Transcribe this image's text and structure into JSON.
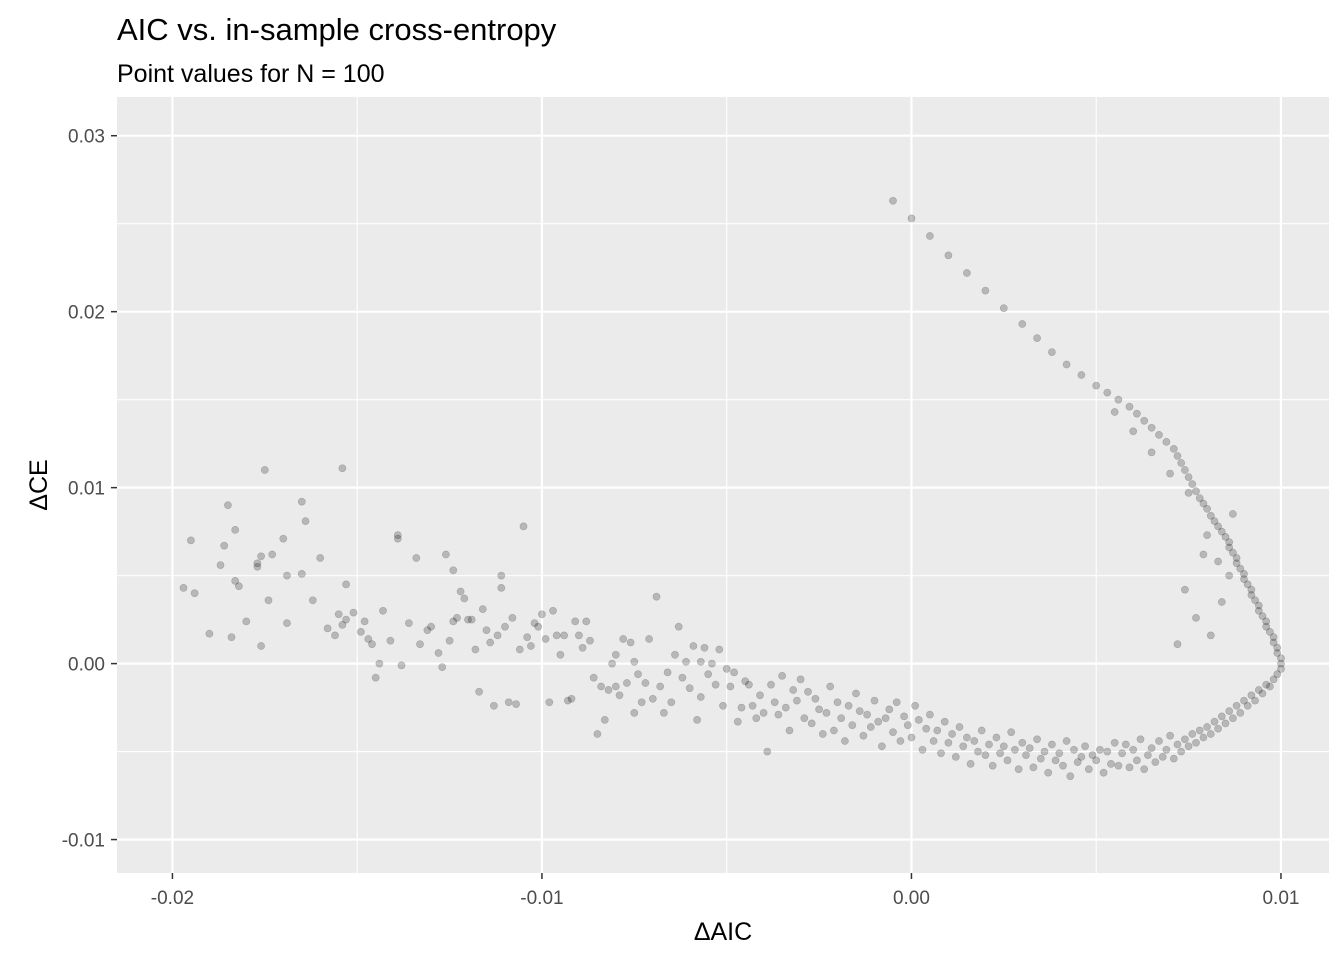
{
  "chart_data": {
    "type": "scatter",
    "title": "AIC vs. in-sample cross-entropy",
    "subtitle": "Point values for N = 100",
    "xlabel": "ΔAIC",
    "ylabel": "ΔCE",
    "xlim": [
      -0.0215,
      0.0113
    ],
    "ylim": [
      -0.0119,
      0.0322
    ],
    "xticks": [
      -0.02,
      -0.01,
      0.0,
      0.01
    ],
    "xtick_labels": [
      "-0.02",
      "-0.01",
      "0.00",
      "0.01"
    ],
    "yticks": [
      -0.01,
      0.0,
      0.01,
      0.02,
      0.03
    ],
    "ytick_labels": [
      "-0.01",
      "0.00",
      "0.01",
      "0.02",
      "0.03"
    ],
    "grid": true,
    "point_color": "#000000",
    "point_alpha": 0.22,
    "panel_background": "#ebebeb",
    "points": [
      [
        -0.0197,
        0.0043
      ],
      [
        -0.0195,
        0.007
      ],
      [
        -0.0194,
        0.004
      ],
      [
        -0.019,
        0.0017
      ],
      [
        -0.0187,
        0.0056
      ],
      [
        -0.0186,
        0.0067
      ],
      [
        -0.0185,
        0.009
      ],
      [
        -0.0184,
        0.0015
      ],
      [
        -0.0183,
        0.0076
      ],
      [
        -0.0183,
        0.0047
      ],
      [
        -0.0182,
        0.0044
      ],
      [
        -0.018,
        0.0024
      ],
      [
        -0.0177,
        0.0055
      ],
      [
        -0.0177,
        0.0057
      ],
      [
        -0.0176,
        0.001
      ],
      [
        -0.0176,
        0.0061
      ],
      [
        -0.0175,
        0.011
      ],
      [
        -0.0174,
        0.0036
      ],
      [
        -0.0173,
        0.0062
      ],
      [
        -0.017,
        0.0071
      ],
      [
        -0.0169,
        0.005
      ],
      [
        -0.0169,
        0.0023
      ],
      [
        -0.0165,
        0.0051
      ],
      [
        -0.0165,
        0.0092
      ],
      [
        -0.0164,
        0.0081
      ],
      [
        -0.0162,
        0.0036
      ],
      [
        -0.016,
        0.006
      ],
      [
        -0.0158,
        0.002
      ],
      [
        -0.0156,
        0.0016
      ],
      [
        -0.0155,
        0.0028
      ],
      [
        -0.0154,
        0.0111
      ],
      [
        -0.0154,
        0.0022
      ],
      [
        -0.0153,
        0.0045
      ],
      [
        -0.0153,
        0.0025
      ],
      [
        -0.0151,
        0.0029
      ],
      [
        -0.0149,
        0.0018
      ],
      [
        -0.0148,
        0.0024
      ],
      [
        -0.0147,
        0.0014
      ],
      [
        -0.0146,
        0.0011
      ],
      [
        -0.0145,
        -0.0008
      ],
      [
        -0.0144,
        0.0
      ],
      [
        -0.0143,
        0.003
      ],
      [
        -0.0141,
        0.0013
      ],
      [
        -0.0139,
        0.0071
      ],
      [
        -0.0139,
        0.0073
      ],
      [
        -0.0138,
        -0.0001
      ],
      [
        -0.0136,
        0.0023
      ],
      [
        -0.0134,
        0.006
      ],
      [
        -0.0133,
        0.0011
      ],
      [
        -0.0131,
        0.0019
      ],
      [
        -0.013,
        0.0021
      ],
      [
        -0.0128,
        0.0006
      ],
      [
        -0.0127,
        -0.0002
      ],
      [
        -0.0126,
        0.0062
      ],
      [
        -0.0125,
        0.0013
      ],
      [
        -0.0124,
        0.0024
      ],
      [
        -0.0124,
        0.0053
      ],
      [
        -0.0123,
        0.0026
      ],
      [
        -0.0122,
        0.0041
      ],
      [
        -0.0121,
        0.0037
      ],
      [
        -0.012,
        0.0025
      ],
      [
        -0.0119,
        0.0025
      ],
      [
        -0.0118,
        0.0008
      ],
      [
        -0.0117,
        -0.0016
      ],
      [
        -0.0116,
        0.0031
      ],
      [
        -0.0115,
        0.0019
      ],
      [
        -0.0114,
        0.0012
      ],
      [
        -0.0113,
        -0.0024
      ],
      [
        -0.0112,
        0.0016
      ],
      [
        -0.0111,
        0.005
      ],
      [
        -0.0111,
        0.0043
      ],
      [
        -0.011,
        0.0021
      ],
      [
        -0.0109,
        -0.0022
      ],
      [
        -0.0108,
        0.0026
      ],
      [
        -0.0107,
        -0.0023
      ],
      [
        -0.0106,
        0.0008
      ],
      [
        -0.0105,
        0.0078
      ],
      [
        -0.0104,
        0.0015
      ],
      [
        -0.0103,
        0.001
      ],
      [
        -0.0102,
        0.0023
      ],
      [
        -0.0101,
        0.0021
      ],
      [
        -0.01,
        0.0028
      ],
      [
        -0.0099,
        0.0014
      ],
      [
        -0.0098,
        -0.0022
      ],
      [
        -0.0097,
        0.003
      ],
      [
        -0.0096,
        0.0016
      ],
      [
        -0.0095,
        0.0005
      ],
      [
        -0.0094,
        0.0016
      ],
      [
        -0.0093,
        -0.0021
      ],
      [
        -0.0092,
        -0.002
      ],
      [
        -0.0091,
        0.0024
      ],
      [
        -0.009,
        0.0016
      ],
      [
        -0.0089,
        0.0009
      ],
      [
        -0.0088,
        0.0024
      ],
      [
        -0.0087,
        0.0013
      ],
      [
        -0.0086,
        -0.0008
      ],
      [
        -0.0085,
        -0.004
      ],
      [
        -0.0084,
        -0.0013
      ],
      [
        -0.0083,
        -0.0032
      ],
      [
        -0.0082,
        -0.0015
      ],
      [
        -0.0081,
        0.0
      ],
      [
        -0.008,
        0.0005
      ],
      [
        -0.008,
        -0.0013
      ],
      [
        -0.0079,
        -0.0018
      ],
      [
        -0.0078,
        0.0014
      ],
      [
        -0.0077,
        -0.0011
      ],
      [
        -0.0076,
        0.0012
      ],
      [
        -0.0075,
        0.0001
      ],
      [
        -0.0075,
        -0.0028
      ],
      [
        -0.0074,
        -0.0006
      ],
      [
        -0.0073,
        -0.0022
      ],
      [
        -0.0072,
        -0.0011
      ],
      [
        -0.0071,
        0.0014
      ],
      [
        -0.007,
        -0.002
      ],
      [
        -0.0069,
        0.0038
      ],
      [
        -0.0068,
        -0.0013
      ],
      [
        -0.0067,
        -0.0028
      ],
      [
        -0.0066,
        -0.0005
      ],
      [
        -0.0065,
        -0.0022
      ],
      [
        -0.0064,
        0.0005
      ],
      [
        -0.0063,
        0.0021
      ],
      [
        -0.0062,
        -0.0008
      ],
      [
        -0.0061,
        0.0001
      ],
      [
        -0.006,
        -0.0014
      ],
      [
        -0.0059,
        0.001
      ],
      [
        -0.0058,
        -0.0032
      ],
      [
        -0.0057,
        0.0001
      ],
      [
        -0.0057,
        -0.0019
      ],
      [
        -0.0056,
        0.0009
      ],
      [
        -0.0055,
        -0.0006
      ],
      [
        -0.0054,
        0.0
      ],
      [
        -0.0053,
        -0.0012
      ],
      [
        -0.0052,
        0.0008
      ],
      [
        -0.0051,
        -0.0024
      ],
      [
        -0.005,
        -0.0003
      ],
      [
        -0.0049,
        -0.0013
      ],
      [
        -0.0048,
        -0.0005
      ],
      [
        -0.0047,
        -0.0033
      ],
      [
        -0.0046,
        -0.0025
      ],
      [
        -0.0045,
        -0.001
      ],
      [
        -0.0044,
        -0.0012
      ],
      [
        -0.0043,
        -0.0024
      ],
      [
        -0.0042,
        -0.0031
      ],
      [
        -0.0041,
        -0.0018
      ],
      [
        -0.004,
        -0.0028
      ],
      [
        -0.0039,
        -0.005
      ],
      [
        -0.0038,
        -0.0012
      ],
      [
        -0.0037,
        -0.0022
      ],
      [
        -0.0036,
        -0.0029
      ],
      [
        -0.0035,
        -0.0007
      ],
      [
        -0.0034,
        -0.0025
      ],
      [
        -0.0033,
        -0.0038
      ],
      [
        -0.0032,
        -0.0015
      ],
      [
        -0.0031,
        -0.0021
      ],
      [
        -0.003,
        -0.0009
      ],
      [
        -0.0029,
        -0.0031
      ],
      [
        -0.0028,
        -0.0016
      ],
      [
        -0.0027,
        -0.0034
      ],
      [
        -0.0026,
        -0.002
      ],
      [
        -0.0025,
        -0.0026
      ],
      [
        -0.0024,
        -0.004
      ],
      [
        -0.0023,
        -0.0028
      ],
      [
        -0.0022,
        -0.0013
      ],
      [
        -0.0021,
        -0.0038
      ],
      [
        -0.002,
        -0.0022
      ],
      [
        -0.0019,
        -0.0031
      ],
      [
        -0.0018,
        -0.0044
      ],
      [
        -0.0017,
        -0.0024
      ],
      [
        -0.0016,
        -0.0035
      ],
      [
        -0.0015,
        -0.0017
      ],
      [
        -0.0014,
        -0.0027
      ],
      [
        -0.0013,
        -0.0041
      ],
      [
        -0.0012,
        -0.0029
      ],
      [
        -0.0011,
        -0.0036
      ],
      [
        -0.001,
        -0.0021
      ],
      [
        -0.0009,
        -0.0033
      ],
      [
        -0.0008,
        -0.0047
      ],
      [
        -0.0007,
        -0.0031
      ],
      [
        -0.0006,
        -0.0026
      ],
      [
        -0.0005,
        -0.0039
      ],
      [
        -0.0004,
        -0.0022
      ],
      [
        -0.0003,
        -0.0044
      ],
      [
        -0.0002,
        -0.003
      ],
      [
        -0.0001,
        -0.0035
      ],
      [
        0.0,
        -0.0042
      ],
      [
        0.0001,
        -0.0024
      ],
      [
        0.0002,
        -0.0032
      ],
      [
        0.0003,
        -0.0049
      ],
      [
        0.0004,
        -0.0037
      ],
      [
        0.0005,
        -0.0029
      ],
      [
        0.0006,
        -0.0044
      ],
      [
        0.0007,
        -0.0038
      ],
      [
        0.0008,
        -0.0051
      ],
      [
        0.0009,
        -0.0033
      ],
      [
        0.001,
        -0.0045
      ],
      [
        0.0011,
        -0.004
      ],
      [
        0.0012,
        -0.0053
      ],
      [
        0.0013,
        -0.0036
      ],
      [
        0.0014,
        -0.0047
      ],
      [
        0.0015,
        -0.0042
      ],
      [
        0.0016,
        -0.0057
      ],
      [
        0.0017,
        -0.0044
      ],
      [
        0.0018,
        -0.005
      ],
      [
        0.0019,
        -0.0038
      ],
      [
        0.002,
        -0.0052
      ],
      [
        0.0021,
        -0.0046
      ],
      [
        0.0022,
        -0.0058
      ],
      [
        0.0023,
        -0.0042
      ],
      [
        0.0024,
        -0.0051
      ],
      [
        0.0025,
        -0.0047
      ],
      [
        0.0026,
        -0.0055
      ],
      [
        0.0027,
        -0.0039
      ],
      [
        0.0028,
        -0.0049
      ],
      [
        0.0029,
        -0.006
      ],
      [
        0.003,
        -0.0045
      ],
      [
        0.0031,
        -0.0052
      ],
      [
        0.0032,
        -0.0048
      ],
      [
        0.0033,
        -0.0059
      ],
      [
        0.0034,
        -0.0043
      ],
      [
        0.0035,
        -0.0054
      ],
      [
        0.0036,
        -0.005
      ],
      [
        0.0037,
        -0.0062
      ],
      [
        0.0038,
        -0.0046
      ],
      [
        0.0039,
        -0.0055
      ],
      [
        0.004,
        -0.0051
      ],
      [
        0.0041,
        -0.0058
      ],
      [
        0.0042,
        -0.0044
      ],
      [
        0.0043,
        -0.0064
      ],
      [
        0.0044,
        -0.0049
      ],
      [
        0.0045,
        -0.0056
      ],
      [
        0.0046,
        -0.0053
      ],
      [
        0.0047,
        -0.0047
      ],
      [
        0.0048,
        -0.006
      ],
      [
        0.0049,
        -0.0052
      ],
      [
        0.005,
        -0.0055
      ],
      [
        0.0051,
        -0.0049
      ],
      [
        0.0052,
        -0.0062
      ],
      [
        0.0053,
        -0.005
      ],
      [
        0.0054,
        -0.0057
      ],
      [
        0.0055,
        -0.0045
      ],
      [
        0.0056,
        -0.0058
      ],
      [
        0.0057,
        -0.0051
      ],
      [
        0.0058,
        -0.0046
      ],
      [
        0.0059,
        -0.0059
      ],
      [
        0.006,
        -0.0049
      ],
      [
        0.0061,
        -0.0055
      ],
      [
        0.0062,
        -0.0043
      ],
      [
        0.0063,
        -0.006
      ],
      [
        0.0064,
        -0.0052
      ],
      [
        0.0065,
        -0.0048
      ],
      [
        0.0066,
        -0.0056
      ],
      [
        0.0067,
        -0.0044
      ],
      [
        0.0068,
        -0.0053
      ],
      [
        0.0069,
        -0.0049
      ],
      [
        0.007,
        -0.0041
      ],
      [
        0.0071,
        -0.0054
      ],
      [
        0.0072,
        -0.0046
      ],
      [
        0.0073,
        -0.005
      ],
      [
        0.0074,
        -0.0043
      ],
      [
        0.0075,
        -0.0047
      ],
      [
        0.0076,
        -0.004
      ],
      [
        0.0077,
        -0.0045
      ],
      [
        0.0078,
        -0.0038
      ],
      [
        0.0079,
        -0.0042
      ],
      [
        0.008,
        -0.0036
      ],
      [
        0.0081,
        -0.004
      ],
      [
        0.0082,
        -0.0033
      ],
      [
        0.0083,
        -0.0037
      ],
      [
        0.0084,
        -0.003
      ],
      [
        0.0085,
        -0.0034
      ],
      [
        0.0086,
        -0.0027
      ],
      [
        0.0087,
        -0.0031
      ],
      [
        0.0088,
        -0.0024
      ],
      [
        0.0089,
        -0.0028
      ],
      [
        0.009,
        -0.0021
      ],
      [
        0.0091,
        -0.0024
      ],
      [
        0.0092,
        -0.0018
      ],
      [
        0.0093,
        -0.0021
      ],
      [
        0.0094,
        -0.0015
      ],
      [
        0.0095,
        -0.0017
      ],
      [
        0.0096,
        -0.0012
      ],
      [
        0.0097,
        -0.0013
      ],
      [
        0.0098,
        -0.0009
      ],
      [
        0.0099,
        -0.0006
      ],
      [
        0.01,
        -0.0003
      ],
      [
        0.01,
        0.0
      ],
      [
        0.01,
        0.0003
      ],
      [
        0.0099,
        0.0006
      ],
      [
        0.0099,
        0.0009
      ],
      [
        0.0098,
        0.0012
      ],
      [
        0.0098,
        0.0015
      ],
      [
        0.0097,
        0.0018
      ],
      [
        0.0096,
        0.0021
      ],
      [
        0.0096,
        0.0024
      ],
      [
        0.0095,
        0.0027
      ],
      [
        0.0094,
        0.003
      ],
      [
        0.0094,
        0.0033
      ],
      [
        0.0093,
        0.0036
      ],
      [
        0.0092,
        0.0039
      ],
      [
        0.0092,
        0.0042
      ],
      [
        0.0091,
        0.0045
      ],
      [
        0.009,
        0.0048
      ],
      [
        0.009,
        0.0051
      ],
      [
        0.0089,
        0.0054
      ],
      [
        0.0088,
        0.0057
      ],
      [
        0.0088,
        0.006
      ],
      [
        0.0087,
        0.0063
      ],
      [
        0.0086,
        0.0066
      ],
      [
        0.0086,
        0.0069
      ],
      [
        0.0085,
        0.0072
      ],
      [
        0.0084,
        0.0075
      ],
      [
        0.0083,
        0.0078
      ],
      [
        0.0082,
        0.0081
      ],
      [
        0.0081,
        0.0084
      ],
      [
        0.008,
        0.0088
      ],
      [
        0.0079,
        0.0091
      ],
      [
        0.0078,
        0.0094
      ],
      [
        0.0077,
        0.0098
      ],
      [
        0.0076,
        0.0102
      ],
      [
        0.0075,
        0.0106
      ],
      [
        0.0074,
        0.011
      ],
      [
        0.0073,
        0.0114
      ],
      [
        0.0072,
        0.0118
      ],
      [
        0.0071,
        0.0122
      ],
      [
        0.0069,
        0.0126
      ],
      [
        0.0067,
        0.013
      ],
      [
        0.0065,
        0.0134
      ],
      [
        0.0063,
        0.0138
      ],
      [
        0.0061,
        0.0142
      ],
      [
        0.0059,
        0.0146
      ],
      [
        0.0056,
        0.015
      ],
      [
        0.0053,
        0.0154
      ],
      [
        0.005,
        0.0158
      ],
      [
        0.0046,
        0.0164
      ],
      [
        0.0042,
        0.017
      ],
      [
        0.0038,
        0.0177
      ],
      [
        0.0034,
        0.0185
      ],
      [
        0.003,
        0.0193
      ],
      [
        0.0025,
        0.0202
      ],
      [
        0.002,
        0.0212
      ],
      [
        0.0015,
        0.0222
      ],
      [
        0.001,
        0.0232
      ],
      [
        0.0005,
        0.0243
      ],
      [
        0.0,
        0.0253
      ],
      [
        -0.0005,
        0.0263
      ],
      [
        0.0074,
        0.0042
      ],
      [
        0.0079,
        0.0062
      ],
      [
        0.0081,
        0.0016
      ],
      [
        0.0084,
        0.0035
      ],
      [
        0.0086,
        0.005
      ],
      [
        0.0072,
        0.0011
      ],
      [
        0.0077,
        0.0026
      ],
      [
        0.0083,
        0.0058
      ],
      [
        0.008,
        0.0073
      ],
      [
        0.0087,
        0.0085
      ],
      [
        0.0075,
        0.0097
      ],
      [
        0.007,
        0.0108
      ],
      [
        0.0065,
        0.012
      ],
      [
        0.006,
        0.0132
      ],
      [
        0.0055,
        0.0143
      ]
    ]
  }
}
